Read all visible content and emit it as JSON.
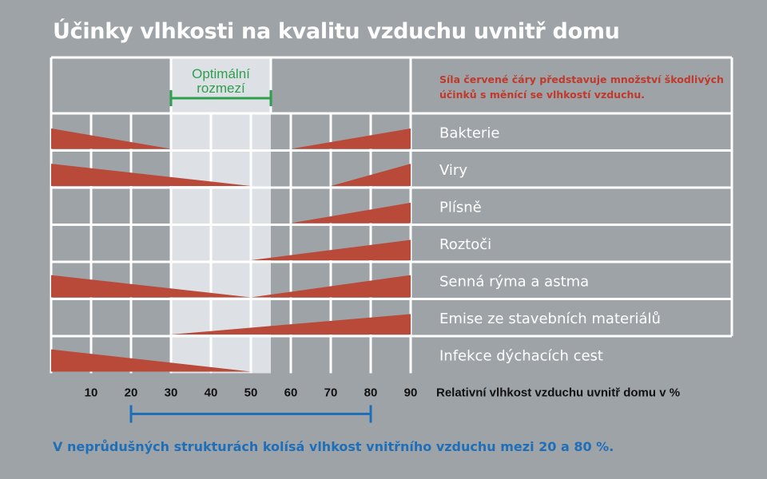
{
  "title": "Účinky vlhkosti na kvalitu vzduchu uvnitř domu",
  "note": "Síla červené čáry představuje množství škodlivých účinků s měnící se vlhkostí vzduchu.",
  "bottom_note": "V neprůdušných strukturách kolísá vlhkost vnitřního vzduchu mezi 20 a 80 %.",
  "colors": {
    "background": "#9ea3a8",
    "grid": "#ffffff",
    "optimal_band": "#dde1e5",
    "wedge": "#b94a3a",
    "optimal_marker": "#2e9e4f",
    "range_marker": "#1f6fb8",
    "note_text": "#c0392b"
  },
  "chart_data": {
    "type": "bar",
    "xlabel": "Relativní vlhkost vzduchu uvnitř domu v %",
    "xlim": [
      0,
      90
    ],
    "xticks": [
      10,
      20,
      30,
      40,
      50,
      60,
      70,
      80,
      90
    ],
    "optimal_range": {
      "label": "Optimální rozmezí",
      "from": 30,
      "to": 55
    },
    "typical_range": {
      "from": 20,
      "to": 80
    },
    "series": [
      {
        "name": "Bakterie",
        "segments": [
          {
            "from": 0,
            "to": 30,
            "peak": "left",
            "max": 0.55
          },
          {
            "from": 60,
            "to": 90,
            "peak": "right",
            "max": 0.55
          }
        ]
      },
      {
        "name": "Viry",
        "segments": [
          {
            "from": 0,
            "to": 50,
            "peak": "left",
            "max": 0.6
          },
          {
            "from": 70,
            "to": 90,
            "peak": "right",
            "max": 0.6
          }
        ]
      },
      {
        "name": "Plísně",
        "segments": [
          {
            "from": 60,
            "to": 90,
            "peak": "right",
            "max": 0.55
          }
        ]
      },
      {
        "name": "Roztoči",
        "segments": [
          {
            "from": 50,
            "to": 90,
            "peak": "right",
            "max": 0.55
          }
        ]
      },
      {
        "name": "Senná rýma a astma",
        "segments": [
          {
            "from": 0,
            "to": 50,
            "peak": "left",
            "max": 0.6
          },
          {
            "from": 50,
            "to": 90,
            "peak": "right",
            "max": 0.6
          }
        ]
      },
      {
        "name": "Emise ze stavebních materiálů",
        "segments": [
          {
            "from": 30,
            "to": 90,
            "peak": "right",
            "max": 0.55
          }
        ]
      },
      {
        "name": "Infekce dýchacích cest",
        "segments": [
          {
            "from": 0,
            "to": 50,
            "peak": "left",
            "max": 0.6
          }
        ]
      }
    ]
  }
}
